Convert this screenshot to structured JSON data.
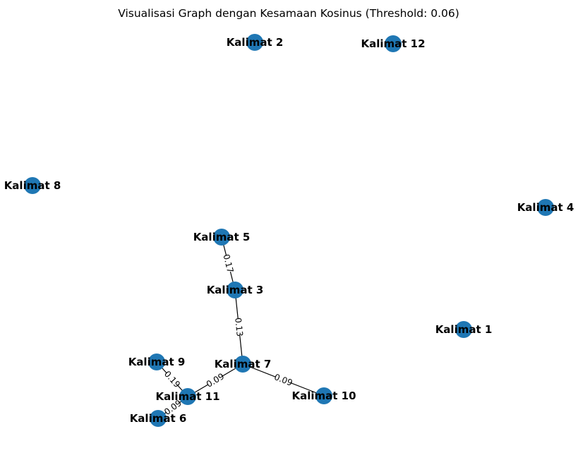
{
  "title": "Visualisasi Graph dengan Kesamaan Kosinus (Threshold: 0.06)",
  "colors": {
    "node": "#1f77b4",
    "edge": "#000000",
    "background": "#ffffff"
  },
  "nodes": [
    {
      "id": "k1",
      "label": "Kalimat 1"
    },
    {
      "id": "k2",
      "label": "Kalimat 2"
    },
    {
      "id": "k3",
      "label": "Kalimat 3"
    },
    {
      "id": "k4",
      "label": "Kalimat 4"
    },
    {
      "id": "k5",
      "label": "Kalimat 5"
    },
    {
      "id": "k6",
      "label": "Kalimat 6"
    },
    {
      "id": "k7",
      "label": "Kalimat 7"
    },
    {
      "id": "k8",
      "label": "Kalimat 8"
    },
    {
      "id": "k9",
      "label": "Kalimat 9"
    },
    {
      "id": "k10",
      "label": "Kalimat 10"
    },
    {
      "id": "k11",
      "label": "Kalimat 11"
    },
    {
      "id": "k12",
      "label": "Kalimat 12"
    }
  ],
  "edges": [
    {
      "source": "k5",
      "target": "k3",
      "weight": "0.17"
    },
    {
      "source": "k3",
      "target": "k7",
      "weight": "0.13"
    },
    {
      "source": "k7",
      "target": "k10",
      "weight": "0.09"
    },
    {
      "source": "k7",
      "target": "k11",
      "weight": "0.09"
    },
    {
      "source": "k9",
      "target": "k11",
      "weight": "0.19"
    },
    {
      "source": "k11",
      "target": "k6",
      "weight": "0.09"
    }
  ]
}
